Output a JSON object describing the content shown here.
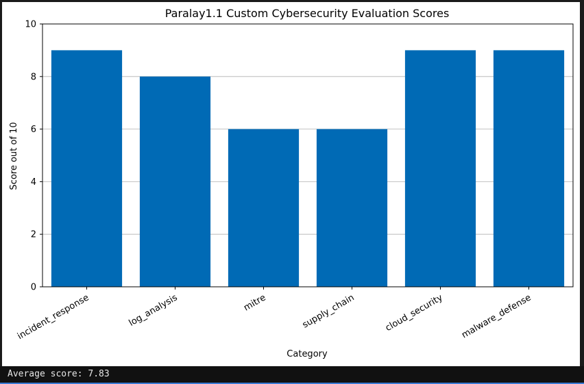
{
  "chart_data": {
    "type": "bar",
    "title": "Paralay1.1 Custom Cybersecurity Evaluation Scores",
    "xlabel": "Category",
    "ylabel": "Score out of 10",
    "categories": [
      "incident_response",
      "log_analysis",
      "mitre",
      "supply_chain",
      "cloud_security",
      "malware_defense"
    ],
    "values": [
      9,
      8,
      6,
      6,
      9,
      9
    ],
    "ylim": [
      0,
      10
    ],
    "yticks": [
      0,
      2,
      4,
      6,
      8,
      10
    ],
    "grid": "horizontal",
    "bar_color": "#006ab5"
  },
  "status": {
    "text": "Average score: 7.83"
  }
}
